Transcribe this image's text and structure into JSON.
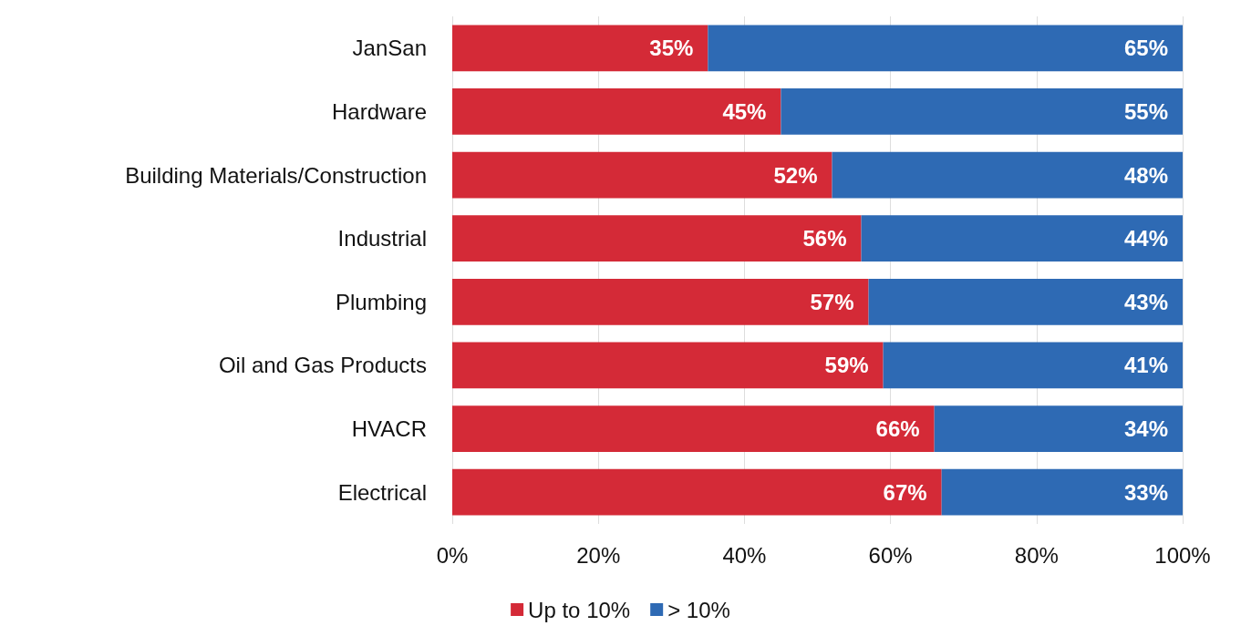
{
  "chart_data": {
    "type": "bar",
    "orientation": "horizontal",
    "stacked": true,
    "categories": [
      "JanSan",
      "Hardware",
      "Building Materials/Construction",
      "Industrial",
      "Plumbing",
      "Oil and Gas Products",
      "HVACR",
      "Electrical"
    ],
    "series": [
      {
        "name": "Up to 10%",
        "color": "#d42a37",
        "values": [
          35,
          45,
          52,
          56,
          57,
          59,
          66,
          67
        ],
        "value_labels": [
          "35%",
          "45%",
          "52%",
          "56%",
          "57%",
          "59%",
          "66%",
          "67%"
        ]
      },
      {
        "name": "> 10%",
        "color": "#2e6ab4",
        "values": [
          65,
          55,
          48,
          44,
          43,
          41,
          34,
          33
        ],
        "value_labels": [
          "65%",
          "55%",
          "48%",
          "44%",
          "43%",
          "41%",
          "34%",
          "33%"
        ]
      }
    ],
    "xlim": [
      0,
      100
    ],
    "xticks": [
      {
        "value": 0,
        "label": "0%"
      },
      {
        "value": 20,
        "label": "20%"
      },
      {
        "value": 40,
        "label": "40%"
      },
      {
        "value": 60,
        "label": "60%"
      },
      {
        "value": 80,
        "label": "80%"
      },
      {
        "value": 100,
        "label": "100%"
      }
    ],
    "grid": "x",
    "legend": "bottom"
  }
}
